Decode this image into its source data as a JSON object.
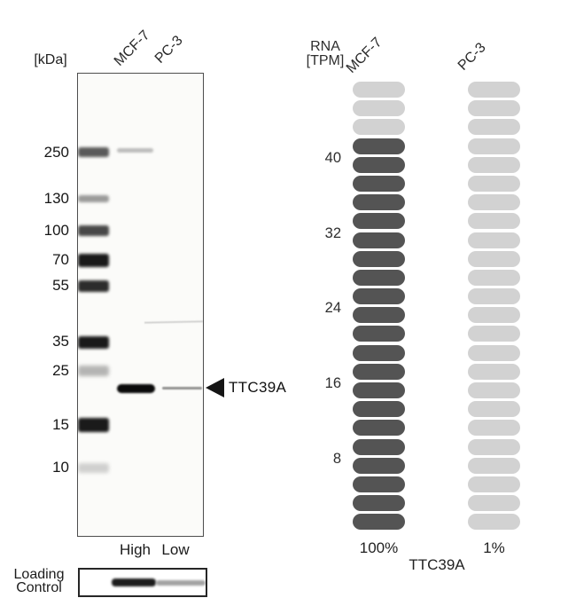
{
  "blot": {
    "kda_unit_label": "[kDa]",
    "lane_labels": [
      "MCF-7",
      "PC-3"
    ],
    "ladder_labels": [
      "250",
      "130",
      "100",
      "70",
      "55",
      "35",
      "25",
      "15",
      "10"
    ],
    "target_label": "TTC39A",
    "concentration_labels": [
      "High",
      "Low"
    ],
    "loading_control_line1": "Loading",
    "loading_control_line2": "Control"
  },
  "chart_data": {
    "type": "bar",
    "ylabel_line1": "RNA",
    "ylabel_line2": "[TPM]",
    "categories": [
      "MCF-7",
      "PC-3"
    ],
    "values_tpm": [
      42,
      1
    ],
    "yticks": [
      "40",
      "32",
      "24",
      "16",
      "8"
    ],
    "ylim": [
      0,
      48
    ],
    "segments_per_column": 24,
    "tpm_per_segment": 2,
    "filled_segments": [
      21,
      0
    ],
    "percent_labels": [
      "100%",
      "1%"
    ],
    "gene_label": "TTC39A",
    "colors": {
      "filled": "#545454",
      "empty": "#d2d2d2"
    }
  }
}
